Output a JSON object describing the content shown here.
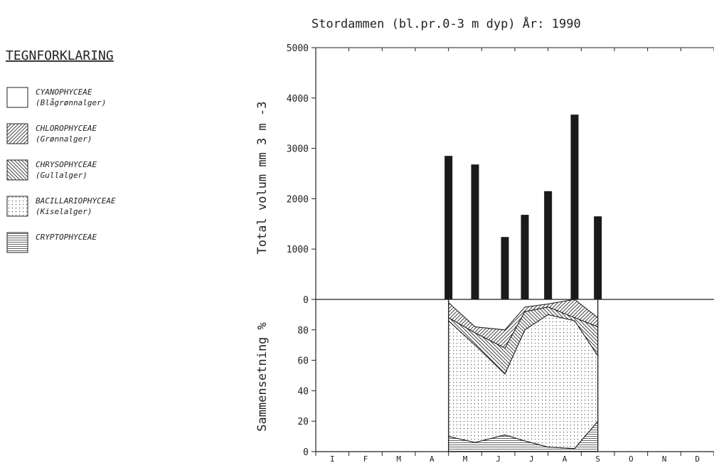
{
  "title": "Stordammen (bl.pr.0-3 m dyp)   År: 1990",
  "legend": {
    "heading": "TEGNFORKLARING",
    "items": [
      {
        "name": "CYANOPHYCEAE",
        "sub": "(Blågrønnalger)",
        "pattern": "none"
      },
      {
        "name": "CHLOROPHYCEAE",
        "sub": "(Grønnalger)",
        "pattern": "diag-right"
      },
      {
        "name": "CHRYSOPHYCEAE",
        "sub": "(Gullalger)",
        "pattern": "diag-left"
      },
      {
        "name": "BACILLARIOPHYCEAE",
        "sub": "(Kiselalger)",
        "pattern": "dots"
      },
      {
        "name": "CRYPTOPHYCEAE",
        "sub": "",
        "pattern": "horizontal"
      }
    ]
  },
  "chart_data": [
    {
      "type": "bar",
      "ylabel": "Total volum mm 3 m -3",
      "ylim": [
        0,
        5000
      ],
      "yticks": [
        "0",
        "1000",
        "2000",
        "3000",
        "4000",
        "5000"
      ],
      "xlim": [
        0,
        12
      ],
      "x": [
        4.0,
        4.8,
        5.7,
        6.3,
        7.0,
        7.8,
        8.5
      ],
      "values": [
        2850,
        2680,
        1240,
        1680,
        2150,
        3670,
        1650
      ],
      "bar_color": "#1a1a1a"
    },
    {
      "type": "area",
      "ylabel": "Sammensetning %",
      "ylim": [
        0,
        100
      ],
      "yticks": [
        "0",
        "20",
        "40",
        "60",
        "80"
      ],
      "xlim": [
        0,
        12
      ],
      "months": [
        "I",
        "F",
        "M",
        "A",
        "M",
        "J",
        "J",
        "A",
        "S",
        "O",
        "N",
        "D"
      ],
      "x": [
        4.0,
        4.8,
        5.7,
        6.3,
        7.0,
        7.8,
        8.5
      ],
      "boundaries": {
        "cryptophyceae": [
          10,
          6,
          11,
          7,
          3,
          2,
          20
        ],
        "bacillariophyceae": [
          86,
          70,
          51,
          80,
          90,
          86,
          63
        ],
        "chrysophyceae": [
          88,
          78,
          68,
          92,
          95,
          88,
          82
        ],
        "chlorophyceae": [
          98,
          82,
          80,
          95,
          97,
          100,
          88
        ]
      }
    }
  ]
}
